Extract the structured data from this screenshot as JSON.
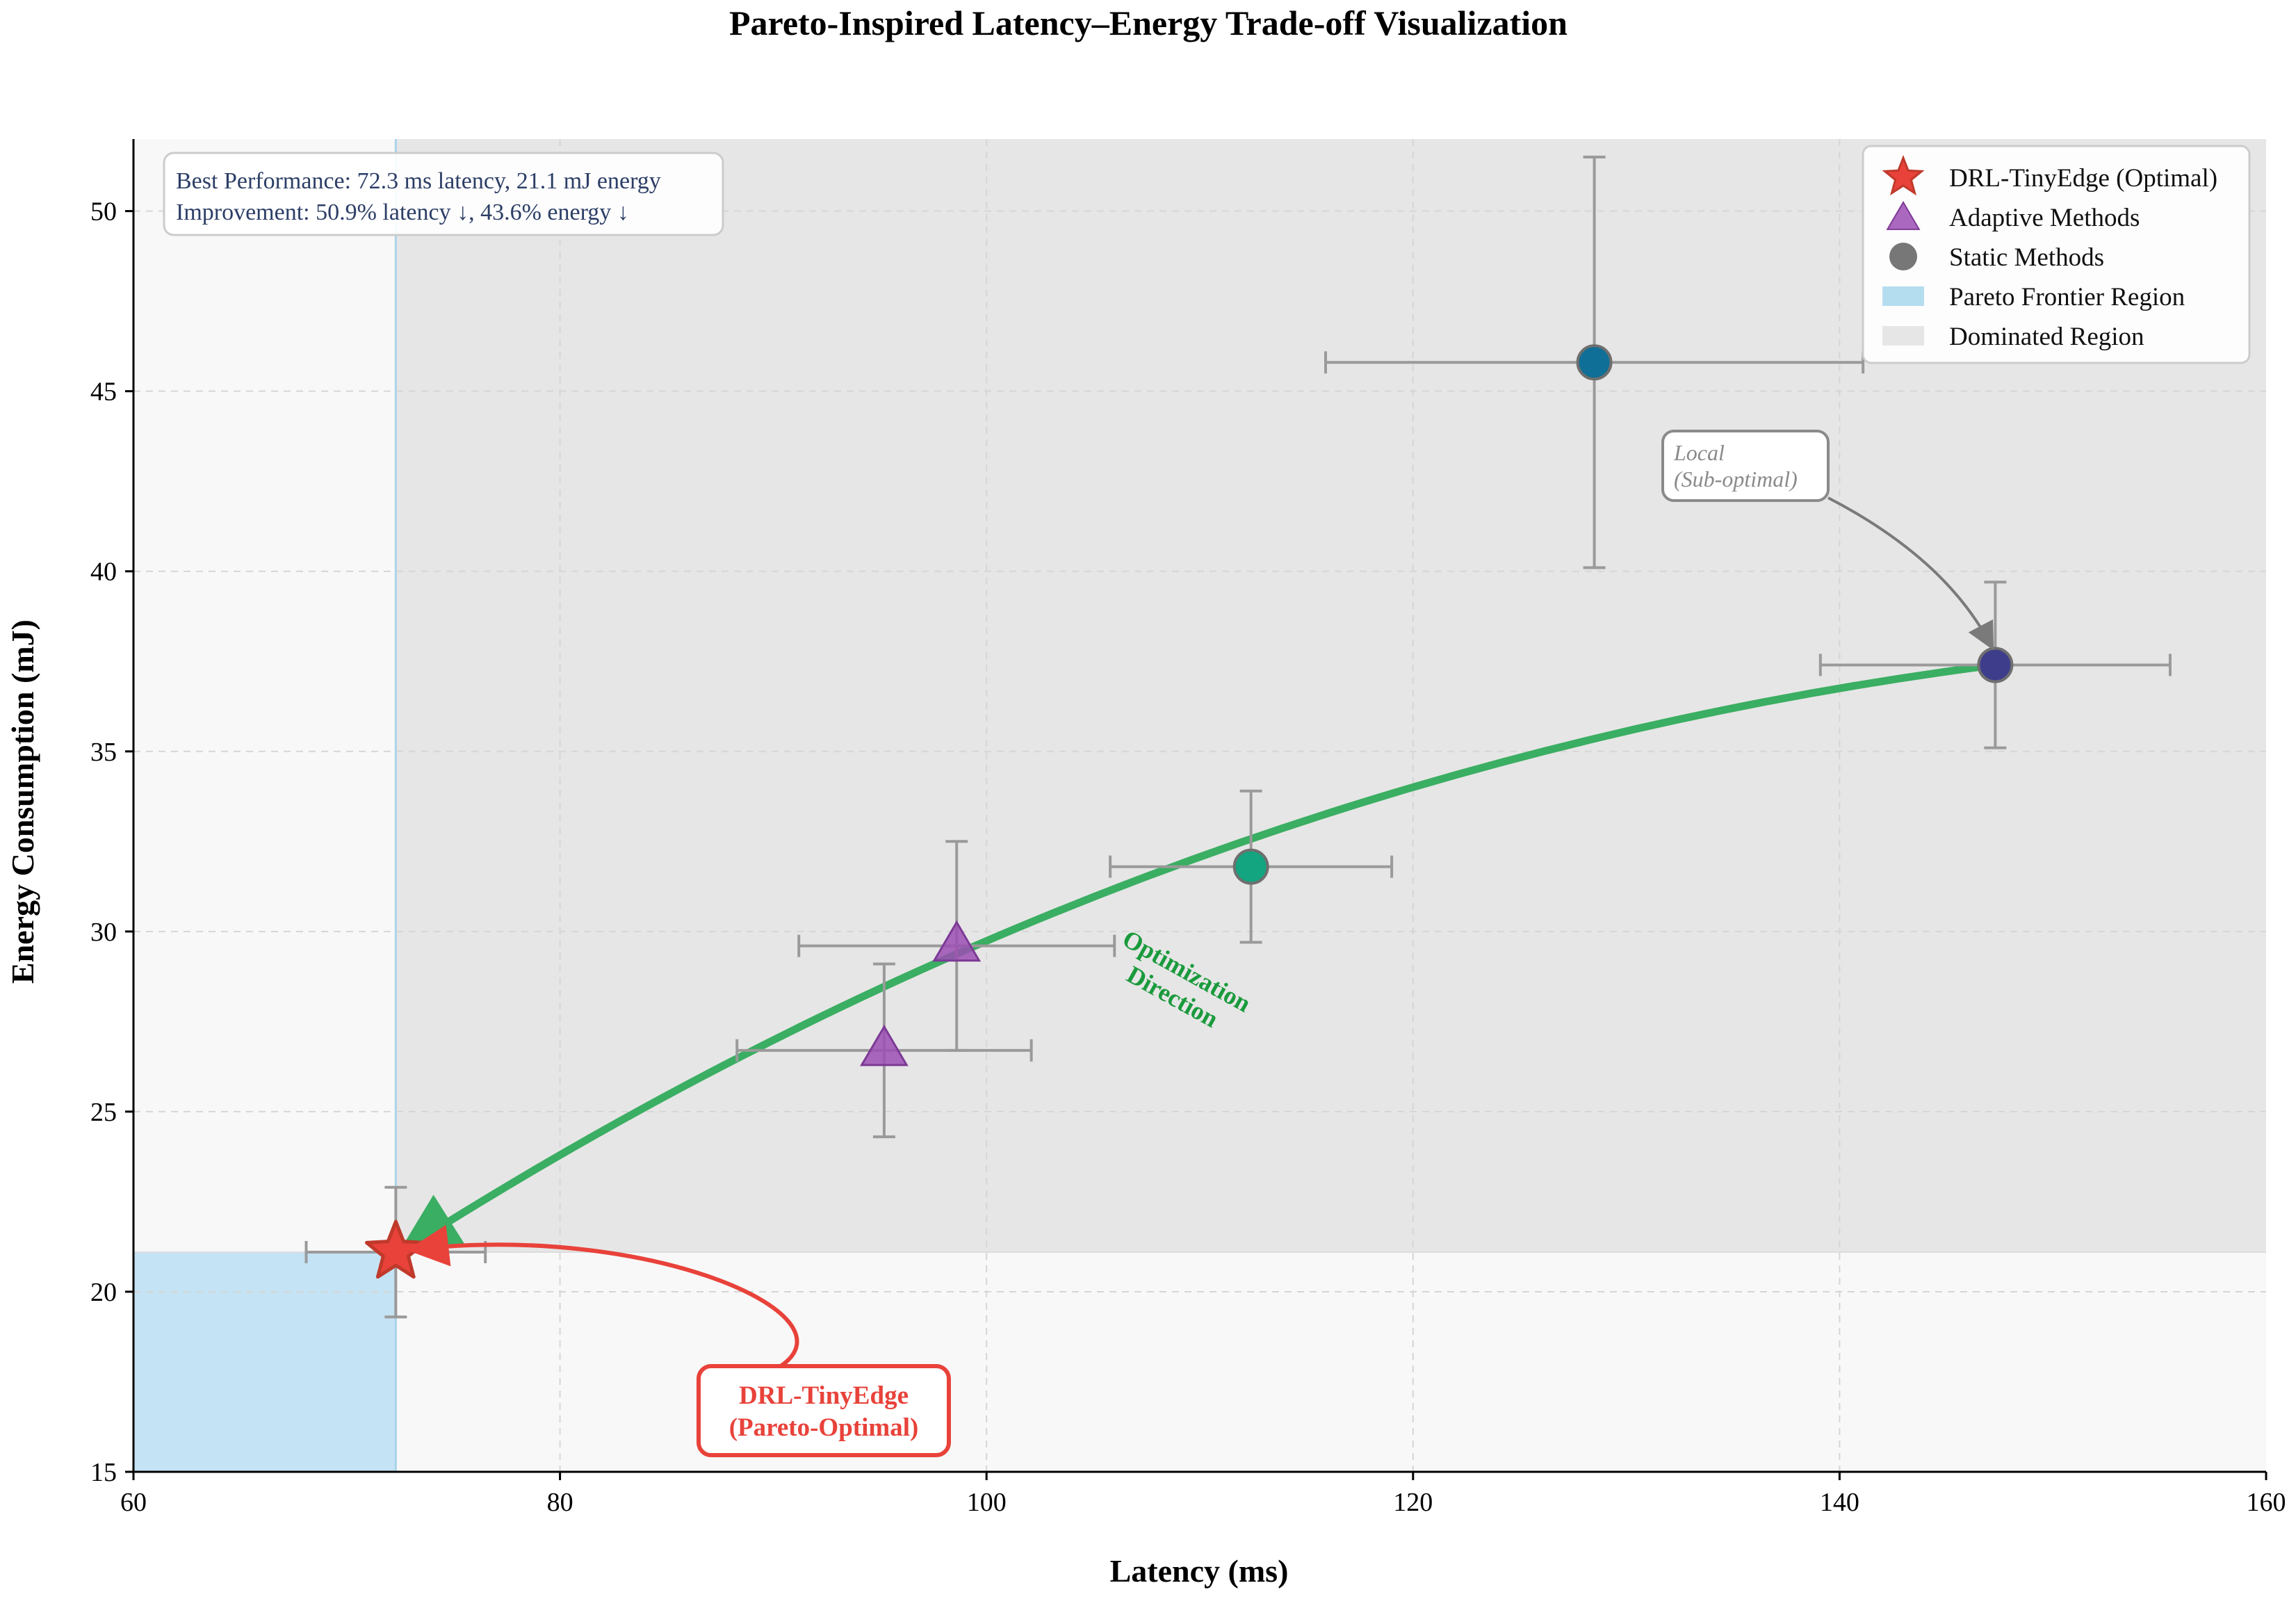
{
  "colors": {
    "optimal": "#e8423a",
    "optimal_edge": "#c0392b",
    "adaptive": "#9b4fb3",
    "static_a": "#0f6f96",
    "static_b": "#12a57f",
    "static_c": "#3e3d8c",
    "curve": "#3aae62",
    "direction_text": "#1a9a3c",
    "pareto_region": "#c4e3f4",
    "dominated_region": "#e6e6e6",
    "plot_bg": "#f8f8f8",
    "errorbar": "#9a9a9a",
    "info_text": "#2c3e66",
    "local_text": "#8a8a8a",
    "local_arrow": "#7a7a7a"
  },
  "chart_data": {
    "type": "scatter",
    "title": "Pareto-Inspired Latency–Energy Trade-off Visualization",
    "xlabel": "Latency (ms)",
    "ylabel": "Energy Consumption (mJ)",
    "xlim": [
      60,
      160
    ],
    "ylim": [
      15,
      52
    ],
    "x_ticks": [
      60,
      80,
      100,
      120,
      140,
      160
    ],
    "y_ticks": [
      15,
      20,
      25,
      30,
      35,
      40,
      45,
      50
    ],
    "grid": true,
    "legend_position": "top-right",
    "series": [
      {
        "name": "DRL-TinyEdge (Optimal)",
        "marker": "star",
        "color_key": "optimal",
        "points": [
          {
            "x": 72.3,
            "y": 21.1,
            "xerr": 4.2,
            "yerr": 1.8
          }
        ]
      },
      {
        "name": "Adaptive Methods",
        "marker": "triangle",
        "color_key": "adaptive",
        "points": [
          {
            "x": 95.2,
            "y": 26.7,
            "xerr": 6.9,
            "yerr": 2.4
          },
          {
            "x": 98.6,
            "y": 29.6,
            "xerr": 7.4,
            "yerr": 2.9
          }
        ]
      },
      {
        "name": "Static Methods",
        "marker": "circle",
        "color_key": "static",
        "points": [
          {
            "x": 112.4,
            "y": 31.8,
            "xerr": 6.6,
            "yerr": 2.1,
            "color_key": "static_b"
          },
          {
            "x": 128.5,
            "y": 45.8,
            "xerr": 12.6,
            "yerr": 5.7,
            "color_key": "static_a"
          },
          {
            "x": 147.3,
            "y": 37.4,
            "xerr": 8.2,
            "yerr": 2.3,
            "color_key": "static_c"
          }
        ]
      }
    ],
    "regions": [
      {
        "name": "Pareto Frontier Region",
        "x": [
          60,
          72.3
        ],
        "y": [
          15,
          21.1
        ]
      },
      {
        "name": "Dominated Region",
        "x": [
          72.3,
          160
        ],
        "y": [
          21.1,
          52
        ]
      }
    ],
    "trend_curve": {
      "from": [
        147.3,
        37.4
      ],
      "control": [
        108,
        34.4
      ],
      "to": [
        72.3,
        21.1
      ],
      "label": [
        "Optimization",
        "Direction"
      ]
    },
    "info_box": {
      "line1": "Best Performance: 72.3 ms latency, 21.1 mJ energy",
      "line2": "Improvement: 50.9% latency ↓, 43.6% energy ↓"
    },
    "annotations": {
      "optimal": {
        "lines": [
          "DRL-TinyEdge",
          "(Pareto-Optimal)"
        ],
        "anchor": [
          72.3,
          21.1
        ]
      },
      "local": {
        "lines": [
          "Local",
          "(Sub-optimal)"
        ],
        "anchor": [
          147.3,
          37.4
        ]
      }
    },
    "legend": [
      {
        "label": "DRL-TinyEdge (Optimal)",
        "symbol": "star"
      },
      {
        "label": "Adaptive Methods",
        "symbol": "triangle"
      },
      {
        "label": "Static Methods",
        "symbol": "circle"
      },
      {
        "label": "Pareto Frontier Region",
        "symbol": "patch-blue"
      },
      {
        "label": "Dominated Region",
        "symbol": "patch-gray"
      }
    ]
  }
}
